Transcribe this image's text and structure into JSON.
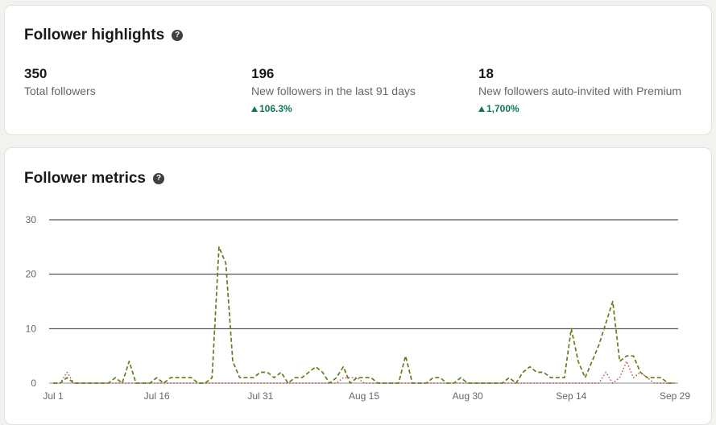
{
  "highlights": {
    "title": "Follower highlights",
    "help_icon": "question-circle-icon",
    "stats": [
      {
        "value": "350",
        "label": "Total followers",
        "change": ""
      },
      {
        "value": "196",
        "label": "New followers in the last 91 days",
        "change": "106.3%"
      },
      {
        "value": "18",
        "label": "New followers auto-invited with Premium",
        "change": "1,700%"
      }
    ],
    "positive_color": "#0e7a4f"
  },
  "metrics": {
    "title": "Follower metrics",
    "help_icon": "question-circle-icon"
  },
  "chart_data": {
    "type": "line",
    "title": "",
    "xlabel": "",
    "ylabel": "",
    "ylim": [
      0,
      30
    ],
    "yticks": [
      0,
      10,
      20,
      30
    ],
    "grid": true,
    "xtick_labels": [
      "Jul 1",
      "Jul 16",
      "Jul 31",
      "Aug 15",
      "Aug 30",
      "Sep 14",
      "Sep 29"
    ],
    "xtick_positions": [
      0,
      15,
      30,
      45,
      60,
      75,
      90
    ],
    "x_count": 91,
    "series": [
      {
        "color": "#5f7f1a",
        "style": "dashed",
        "values": [
          0,
          0,
          1,
          0,
          0,
          0,
          0,
          0,
          0,
          1,
          0,
          4,
          0,
          0,
          0,
          1,
          0,
          1,
          1,
          1,
          1,
          0,
          0,
          1,
          25,
          22,
          4,
          1,
          1,
          1,
          2,
          2,
          1,
          2,
          0,
          1,
          1,
          2,
          3,
          2,
          0,
          1,
          3,
          0,
          1,
          1,
          1,
          0,
          0,
          0,
          0,
          5,
          0,
          0,
          0,
          1,
          1,
          0,
          0,
          1,
          0,
          0,
          0,
          0,
          0,
          0,
          1,
          0,
          2,
          3,
          2,
          2,
          1,
          1,
          1,
          10,
          4,
          1,
          4,
          7,
          11,
          15,
          4,
          5,
          5,
          2,
          1,
          1,
          1,
          0,
          0
        ]
      },
      {
        "color": "#c0504d",
        "style": "dotted",
        "values": [
          0,
          0,
          2,
          0,
          0,
          0,
          0,
          0,
          0,
          0,
          0,
          0,
          0,
          0,
          0,
          0,
          0,
          0,
          0,
          0,
          0,
          0,
          0,
          0,
          0,
          0,
          0,
          0,
          0,
          0,
          0,
          0,
          0,
          0,
          0,
          0,
          0,
          0,
          0,
          0,
          0,
          0,
          1,
          1,
          1,
          0,
          0,
          0,
          0,
          0,
          0,
          0,
          0,
          0,
          0,
          0,
          0,
          0,
          0,
          0,
          0,
          0,
          0,
          0,
          0,
          0,
          0,
          0,
          0,
          0,
          0,
          0,
          0,
          0,
          0,
          0,
          0,
          0,
          0,
          0,
          2,
          0,
          1,
          4,
          1,
          2,
          1,
          0,
          0,
          0,
          0
        ]
      }
    ]
  }
}
